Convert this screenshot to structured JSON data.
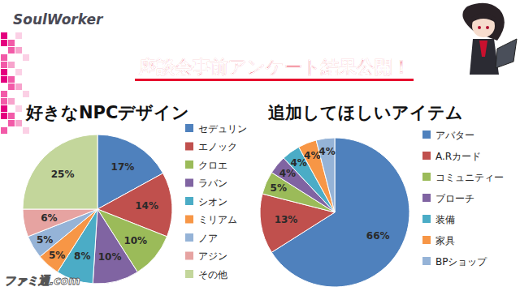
{
  "header": {
    "logo": "SoulWorker",
    "title": "座談会事前アンケート結果公開！"
  },
  "chart_data": [
    {
      "type": "pie",
      "title": "好きなNPCデザイン",
      "categories": [
        "セデュリン",
        "エノック",
        "クロエ",
        "ラバン",
        "シオン",
        "ミリアム",
        "ノア",
        "アジン",
        "その他"
      ],
      "values": [
        17,
        14,
        10,
        10,
        8,
        5,
        5,
        6,
        25
      ],
      "value_labels": [
        "17%",
        "14%",
        "10%",
        "10%",
        "8%",
        "5%",
        "5%",
        "6%",
        "25%"
      ],
      "colors": [
        "#4f81bd",
        "#c0504d",
        "#9bbb59",
        "#8064a2",
        "#4bacc6",
        "#f79646",
        "#95b3d7",
        "#e6a3a1",
        "#c3d69b"
      ],
      "data_labels": true,
      "legend": "right"
    },
    {
      "type": "pie",
      "title": "追加してほしいアイテム",
      "categories": [
        "アバター",
        "A.Rカード",
        "コミュニティー",
        "ブローチ",
        "装備",
        "家具",
        "BPショップ"
      ],
      "values": [
        66,
        13,
        5,
        4,
        4,
        4,
        4
      ],
      "value_labels": [
        "66%",
        "13%",
        "5%",
        "4%",
        "4%",
        "4%",
        "4%"
      ],
      "colors": [
        "#4f81bd",
        "#c0504d",
        "#9bbb59",
        "#8064a2",
        "#4bacc6",
        "#f79646",
        "#95b3d7"
      ],
      "data_labels": true,
      "legend": "right"
    }
  ],
  "watermark": "ファミ通.com"
}
